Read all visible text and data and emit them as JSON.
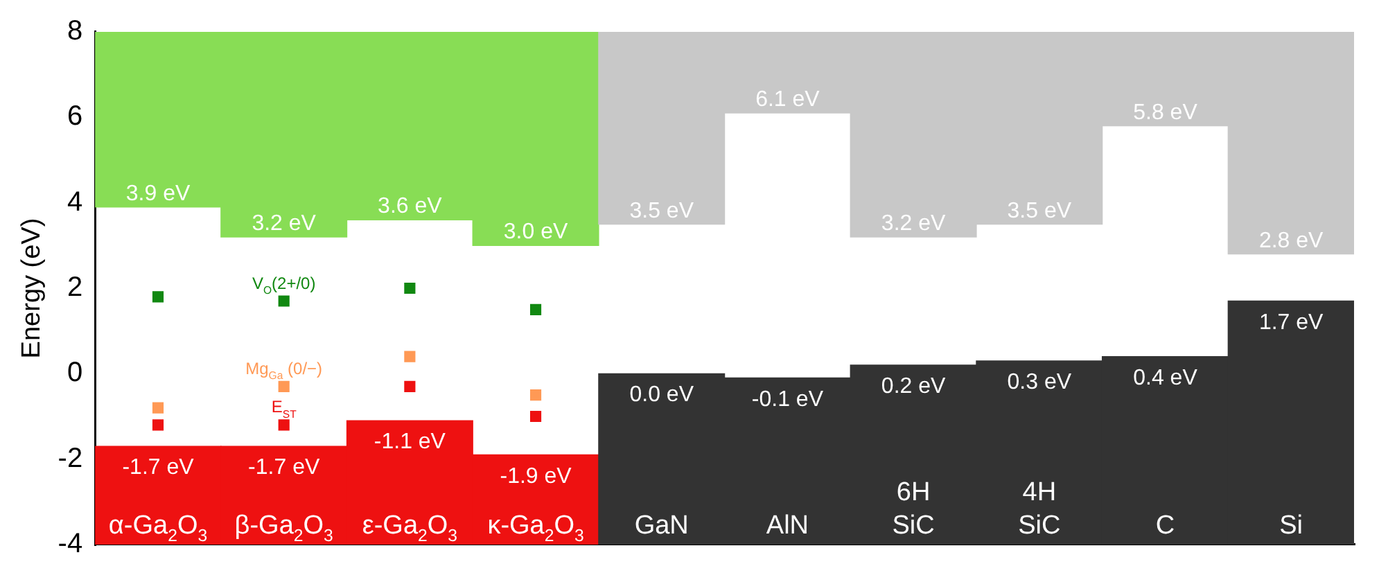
{
  "chart_data": {
    "type": "bar",
    "ylabel": "Energy (eV)",
    "categories": [
      "α-Ga$_{2}$O$_{3}$",
      "β-Ga$_{2}$O$_{3}$",
      "ε-Ga$_{2}$O$_{3}$",
      "κ-Ga$_{2}$O$_{3}$",
      "GaN",
      "AlN",
      "6H SiC",
      "4H SiC",
      "C",
      "Si"
    ],
    "ylim": [
      -4,
      8
    ],
    "yticks": [
      -4,
      -2,
      0,
      2,
      4,
      6,
      8
    ],
    "grid": false,
    "legend": false,
    "marker": "square",
    "series": [
      {
        "type": "bar",
        "base": [
          3.9,
          3.2,
          3.6,
          3.0,
          3.5,
          6.1,
          3.2,
          3.5,
          5.8,
          2.8
        ],
        "values": [
          4.1,
          4.8,
          4.4,
          5.0,
          4.5,
          1.9,
          4.8,
          4.5,
          2.2,
          5.2
        ],
        "colors": [
          "#88dd55",
          "#88dd55",
          "#88dd55",
          "#88dd55",
          "#c8c8c8",
          "#c8c8c8",
          "#c8c8c8",
          "#c8c8c8",
          "#c8c8c8",
          "#c8c8c8"
        ]
      },
      {
        "type": "bar",
        "base": [
          -4,
          -4,
          -4,
          -4,
          -4,
          -4,
          -4,
          -4,
          -4,
          -4
        ],
        "values": [
          2.3,
          2.3,
          2.9,
          2.1,
          4.0,
          3.9,
          4.2,
          4.3,
          4.4,
          5.7
        ],
        "colors": [
          "#ee1111",
          "#ee1111",
          "#ee1111",
          "#ee1111",
          "#333333",
          "#333333",
          "#333333",
          "#333333",
          "#333333",
          "#333333"
        ]
      },
      {
        "type": "scatter",
        "name": "V$_{O}$(2+/0)",
        "color": "#118811",
        "values": [
          1.8,
          1.7,
          2.0,
          1.5,
          null,
          null,
          null,
          null,
          null,
          null
        ]
      },
      {
        "type": "scatter",
        "name": "Mg$_{Ga}$ (0/−)",
        "color": "#ff9955",
        "values": [
          -0.8,
          -0.3,
          0.4,
          -0.5,
          null,
          null,
          null,
          null,
          null,
          null
        ]
      },
      {
        "type": "scatter",
        "name": "E$_{ST}$",
        "color": "#ee1111",
        "values": [
          -1.2,
          -1.2,
          -0.3,
          -1.0,
          null,
          null,
          null,
          null,
          null,
          null
        ]
      }
    ],
    "annotations": [
      {
        "text": "3.9 eV",
        "x": "α-Ga$_{2}$O$_{3}$",
        "y": 3.9
      },
      {
        "text": "3.2 eV",
        "x": "β-Ga$_{2}$O$_{3}$",
        "y": 3.2
      },
      {
        "text": "3.6 eV",
        "x": "ε-Ga$_{2}$O$_{3}$",
        "y": 3.6
      },
      {
        "text": "3.0 eV",
        "x": "κ-Ga$_{2}$O$_{3}$",
        "y": 3.0
      },
      {
        "text": "3.5 eV",
        "x": "GaN",
        "y": 3.5
      },
      {
        "text": "6.1 eV",
        "x": "AlN",
        "y": 6.1
      },
      {
        "text": "3.2 eV",
        "x": "6H SiC",
        "y": 3.2
      },
      {
        "text": "3.5 eV",
        "x": "4H SiC",
        "y": 3.5
      },
      {
        "text": "5.8 eV",
        "x": "C",
        "y": 5.8
      },
      {
        "text": "2.8 eV",
        "x": "Si",
        "y": 2.8
      },
      {
        "text": "-1.7 eV",
        "x": "α-Ga$_{2}$O$_{3}$",
        "y": -1.7
      },
      {
        "text": "-1.7 eV",
        "x": "β-Ga$_{2}$O$_{3}$",
        "y": -1.7
      },
      {
        "text": "-1.1 eV",
        "x": "ε-Ga$_{2}$O$_{3}$",
        "y": -1.1
      },
      {
        "text": "-1.9 eV",
        "x": "κ-Ga$_{2}$O$_{3}$",
        "y": -1.9
      },
      {
        "text": "0.0 eV",
        "x": "GaN",
        "y": 0.0
      },
      {
        "text": "-0.1 eV",
        "x": "AlN",
        "y": -0.1
      },
      {
        "text": "0.2 eV",
        "x": "6H SiC",
        "y": 0.2
      },
      {
        "text": "0.3 eV",
        "x": "4H SiC",
        "y": 0.3
      },
      {
        "text": "0.4 eV",
        "x": "C",
        "y": 0.4
      },
      {
        "text": "1.7 eV",
        "x": "Si",
        "y": 1.7
      }
    ]
  }
}
